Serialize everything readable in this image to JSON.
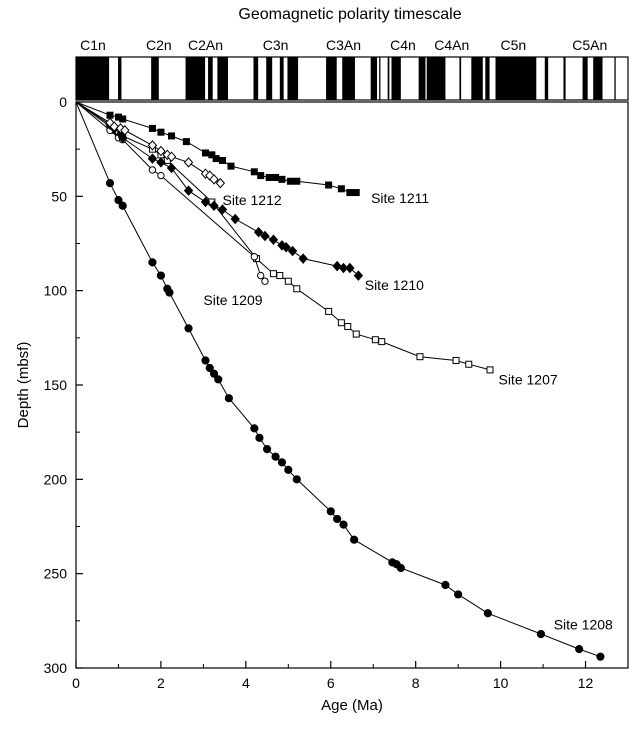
{
  "chart_data": {
    "type": "line",
    "title": "Geomagnetic polarity timescale",
    "xlabel": "Age (Ma)",
    "ylabel": "Depth (mbsf)",
    "xlim": [
      0,
      13
    ],
    "ylim": [
      300,
      0
    ],
    "x_ticks": [
      0,
      2,
      4,
      6,
      8,
      10,
      12
    ],
    "y_ticks": [
      0,
      50,
      100,
      150,
      200,
      250,
      300
    ],
    "grid": false,
    "legend": "none (series labeled directly on plot)",
    "polarity_chrons": [
      {
        "label": "C1n",
        "age": 0.4
      },
      {
        "label": "C2n",
        "age": 1.95
      },
      {
        "label": "C2An",
        "age": 3.05
      },
      {
        "label": "C3n",
        "age": 4.7
      },
      {
        "label": "C3An",
        "age": 6.3
      },
      {
        "label": "C4n",
        "age": 7.7
      },
      {
        "label": "C4An",
        "age": 8.85
      },
      {
        "label": "C5n",
        "age": 10.3
      },
      {
        "label": "C5An",
        "age": 12.1
      }
    ],
    "polarity_normal_intervals": [
      [
        0,
        0.78
      ],
      [
        0.99,
        1.07
      ],
      [
        1.77,
        1.95
      ],
      [
        2.58,
        3.04
      ],
      [
        3.11,
        3.22
      ],
      [
        3.33,
        3.58
      ],
      [
        4.18,
        4.29
      ],
      [
        4.48,
        4.62
      ],
      [
        4.8,
        4.89
      ],
      [
        4.98,
        5.23
      ],
      [
        5.89,
        6.14
      ],
      [
        6.27,
        6.57
      ],
      [
        6.94,
        7.09
      ],
      [
        7.14,
        7.17
      ],
      [
        7.34,
        7.38
      ],
      [
        7.43,
        7.65
      ],
      [
        8.07,
        8.23
      ],
      [
        8.26,
        8.7
      ],
      [
        9.03,
        9.07
      ],
      [
        9.31,
        9.58
      ],
      [
        9.64,
        9.74
      ],
      [
        9.88,
        10.84
      ],
      [
        11.04,
        11.12
      ],
      [
        11.48,
        11.53
      ],
      [
        11.93,
        12.05
      ],
      [
        12.18,
        12.4
      ],
      [
        12.68,
        12.71
      ]
    ],
    "series": [
      {
        "name": "Site 1208",
        "marker": "filled-circle",
        "points": [
          [
            0,
            0
          ],
          [
            0.8,
            43
          ],
          [
            1.0,
            52
          ],
          [
            1.1,
            55
          ],
          [
            1.8,
            85
          ],
          [
            2.0,
            92
          ],
          [
            2.15,
            99
          ],
          [
            2.2,
            101
          ],
          [
            2.65,
            120
          ],
          [
            3.05,
            137
          ],
          [
            3.15,
            141
          ],
          [
            3.25,
            144
          ],
          [
            3.35,
            147
          ],
          [
            3.6,
            157
          ],
          [
            4.2,
            173
          ],
          [
            4.32,
            178
          ],
          [
            4.5,
            184
          ],
          [
            4.7,
            188
          ],
          [
            4.85,
            191
          ],
          [
            5.0,
            195
          ],
          [
            5.2,
            200
          ],
          [
            6.0,
            217
          ],
          [
            6.15,
            221
          ],
          [
            6.3,
            224
          ],
          [
            6.55,
            232
          ],
          [
            7.45,
            244
          ],
          [
            7.55,
            245
          ],
          [
            7.65,
            247
          ],
          [
            8.7,
            256
          ],
          [
            9.0,
            261
          ],
          [
            9.7,
            271
          ],
          [
            10.95,
            282
          ],
          [
            11.85,
            290
          ],
          [
            12.35,
            294
          ]
        ]
      },
      {
        "name": "Site 1207",
        "marker": "open-square",
        "points": [
          [
            0,
            0
          ],
          [
            0.8,
            13
          ],
          [
            0.9,
            15
          ],
          [
            1.0,
            16
          ],
          [
            1.1,
            18
          ],
          [
            1.8,
            25
          ],
          [
            2.0,
            28
          ],
          [
            2.15,
            31
          ],
          [
            3.2,
            53
          ],
          [
            4.25,
            83
          ],
          [
            4.65,
            91
          ],
          [
            4.8,
            92
          ],
          [
            5.0,
            95
          ],
          [
            5.2,
            99
          ],
          [
            5.95,
            111
          ],
          [
            6.25,
            117
          ],
          [
            6.4,
            119
          ],
          [
            6.6,
            123
          ],
          [
            7.05,
            126
          ],
          [
            7.2,
            127
          ],
          [
            8.1,
            135
          ],
          [
            8.95,
            137
          ],
          [
            9.25,
            139
          ],
          [
            9.75,
            142
          ]
        ]
      },
      {
        "name": "Site 1209",
        "marker": "open-circle",
        "points": [
          [
            0,
            0
          ],
          [
            0.8,
            15
          ],
          [
            1.0,
            19
          ],
          [
            1.1,
            20
          ],
          [
            1.8,
            36
          ],
          [
            2.0,
            39
          ],
          [
            4.2,
            82
          ],
          [
            4.35,
            92
          ],
          [
            4.45,
            95
          ]
        ]
      },
      {
        "name": "Site 1210",
        "marker": "filled-diamond",
        "points": [
          [
            0,
            0
          ],
          [
            0.8,
            12
          ],
          [
            0.9,
            14
          ],
          [
            1.05,
            17
          ],
          [
            1.1,
            19
          ],
          [
            1.8,
            30
          ],
          [
            2.0,
            32
          ],
          [
            2.25,
            35
          ],
          [
            2.65,
            47
          ],
          [
            3.05,
            53
          ],
          [
            3.25,
            55
          ],
          [
            3.45,
            57
          ],
          [
            3.75,
            62
          ],
          [
            4.3,
            69
          ],
          [
            4.45,
            71
          ],
          [
            4.65,
            73
          ],
          [
            4.85,
            76
          ],
          [
            4.95,
            77
          ],
          [
            5.1,
            79
          ],
          [
            5.35,
            83
          ],
          [
            6.15,
            87
          ],
          [
            6.3,
            88
          ],
          [
            6.45,
            88
          ],
          [
            6.65,
            92
          ]
        ]
      },
      {
        "name": "Site 1211",
        "marker": "filled-square",
        "points": [
          [
            0,
            0
          ],
          [
            0.8,
            7
          ],
          [
            1.0,
            8
          ],
          [
            1.1,
            9
          ],
          [
            1.8,
            14
          ],
          [
            2.0,
            16
          ],
          [
            2.25,
            18
          ],
          [
            2.6,
            21
          ],
          [
            3.05,
            27
          ],
          [
            3.2,
            28
          ],
          [
            3.3,
            30
          ],
          [
            3.45,
            31
          ],
          [
            3.65,
            34
          ],
          [
            4.2,
            37
          ],
          [
            4.35,
            39
          ],
          [
            4.55,
            40
          ],
          [
            4.7,
            40
          ],
          [
            4.85,
            41
          ],
          [
            5.05,
            42
          ],
          [
            5.2,
            42
          ],
          [
            5.95,
            44
          ],
          [
            6.25,
            46
          ],
          [
            6.45,
            48
          ],
          [
            6.6,
            48
          ]
        ]
      },
      {
        "name": "Site 1212",
        "marker": "open-diamond",
        "points": [
          [
            0,
            0
          ],
          [
            0.8,
            11
          ],
          [
            0.9,
            13
          ],
          [
            1.05,
            14
          ],
          [
            1.15,
            15
          ],
          [
            1.8,
            23
          ],
          [
            2.0,
            26
          ],
          [
            2.15,
            28
          ],
          [
            2.25,
            29
          ],
          [
            2.65,
            32
          ],
          [
            3.05,
            38
          ],
          [
            3.15,
            39
          ],
          [
            3.25,
            41
          ],
          [
            3.4,
            43
          ]
        ]
      }
    ],
    "series_labels": [
      {
        "text": "Site 1211",
        "age": 6.95,
        "depth": 51
      },
      {
        "text": "Site 1212",
        "age": 3.45,
        "depth": 52
      },
      {
        "text": "Site 1210",
        "age": 6.8,
        "depth": 97
      },
      {
        "text": "Site 1209",
        "age": 3.0,
        "depth": 105
      },
      {
        "text": "Site 1207",
        "age": 9.95,
        "depth": 147
      },
      {
        "text": "Site 1208",
        "age": 11.25,
        "depth": 277
      }
    ]
  }
}
